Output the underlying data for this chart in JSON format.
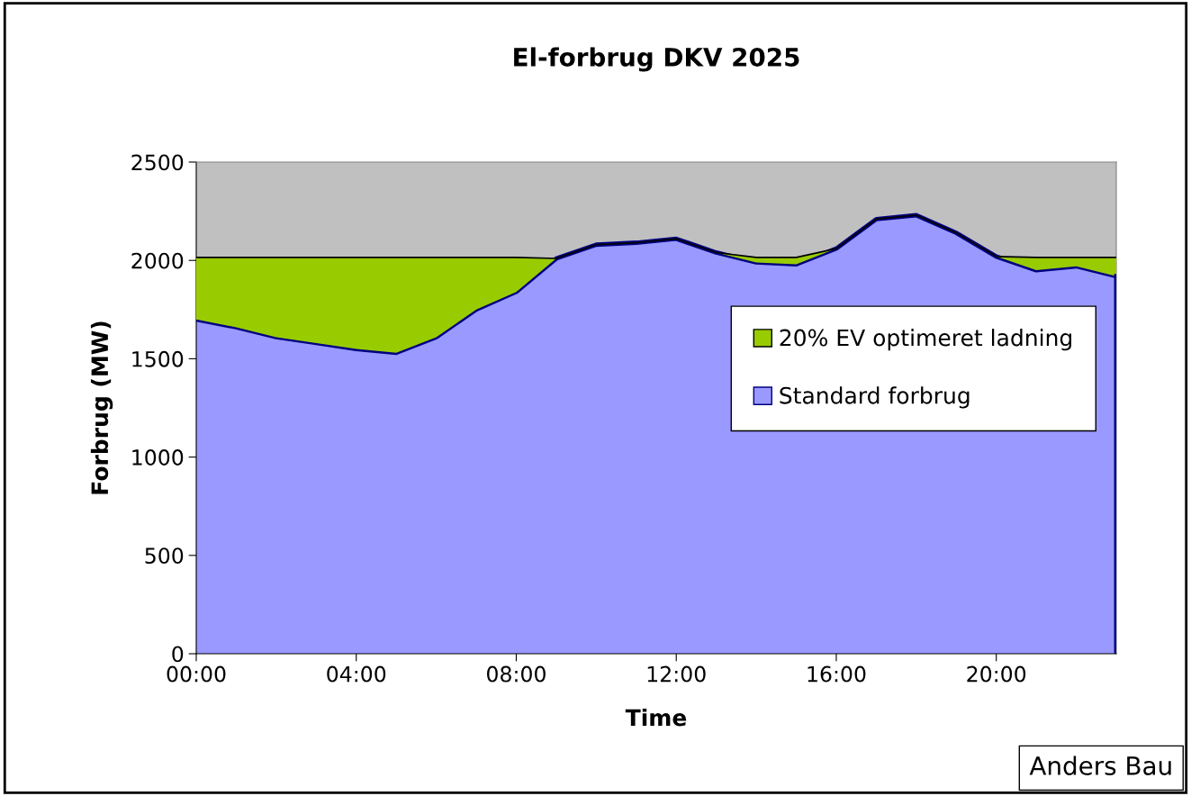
{
  "chart_data": {
    "type": "area",
    "stacked": true,
    "title": "El-forbrug DKV 2025",
    "xlabel": "Time",
    "ylabel": "Forbrug (MW)",
    "x": [
      0,
      1,
      2,
      3,
      4,
      5,
      6,
      7,
      8,
      9,
      10,
      11,
      12,
      13,
      14,
      15,
      16,
      17,
      18,
      19,
      20,
      21,
      22,
      23
    ],
    "xlim": [
      0,
      23
    ],
    "xticks": [
      {
        "value": 0,
        "label": "00:00"
      },
      {
        "value": 4,
        "label": "04:00"
      },
      {
        "value": 8,
        "label": "08:00"
      },
      {
        "value": 12,
        "label": "12:00"
      },
      {
        "value": 16,
        "label": "16:00"
      },
      {
        "value": 20,
        "label": "20:00"
      }
    ],
    "ylim": [
      0,
      2500
    ],
    "yticks": [
      0,
      500,
      1000,
      1500,
      2000,
      2500
    ],
    "grid": false,
    "legend": "right",
    "series": [
      {
        "name": "Standard forbrug",
        "color": "#9999ff",
        "values": [
          1700,
          1660,
          1610,
          1580,
          1550,
          1530,
          1610,
          1750,
          1840,
          2010,
          2080,
          2090,
          2110,
          2040,
          1990,
          1980,
          2060,
          2210,
          2230,
          2140,
          2020,
          1950,
          1970,
          1920
        ]
      },
      {
        "name": "20% EV optimeret ladning",
        "color": "#99cc00",
        "values": [
          315,
          355,
          405,
          435,
          465,
          485,
          405,
          265,
          175,
          0,
          0,
          0,
          0,
          0,
          25,
          35,
          0,
          0,
          0,
          0,
          0,
          65,
          45,
          95
        ]
      }
    ],
    "annotations": [
      "Anders Bau"
    ]
  }
}
